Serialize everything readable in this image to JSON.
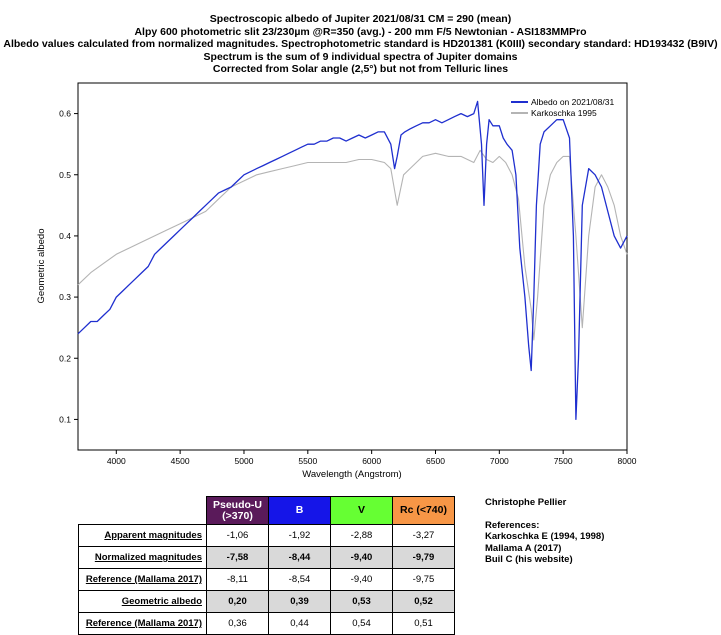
{
  "titles": [
    "Spectroscopic albedo of Jupiter 2021/08/31 CM = 290 (mean)",
    "Alpy 600 photometric slit 23/230µm @R=350 (avg.) - 200 mm F/5 Newtonian - ASI183MMPro",
    "Albedo values calculated from normalized magnitudes. Spectrophotometric standard is HD201381 (K0III) secondary standard: HD193432 (B9IV)",
    "Spectrum is the sum of 9 individual spectra of Jupiter domains",
    "Corrected from Solar angle (2,5°) but not from Telluric lines"
  ],
  "chart_data": {
    "type": "line",
    "xlabel": "Wavelength (Angstrom)",
    "ylabel": "Geometric albedo",
    "xlim": [
      3700,
      8000
    ],
    "ylim": [
      0.05,
      0.65
    ],
    "xticks": [
      4000,
      4500,
      5000,
      5500,
      6000,
      6500,
      7000,
      7500,
      8000
    ],
    "yticks": [
      0.1,
      0.2,
      0.3,
      0.4,
      0.5,
      0.6
    ],
    "legend_position": "top-right",
    "series": [
      {
        "name": "Albedo on 2021/08/31",
        "color": "#1f2fcf",
        "x": [
          3700,
          3750,
          3800,
          3850,
          3900,
          3950,
          4000,
          4050,
          4100,
          4150,
          4200,
          4250,
          4300,
          4350,
          4400,
          4450,
          4500,
          4550,
          4600,
          4650,
          4700,
          4750,
          4800,
          4850,
          4900,
          4950,
          5000,
          5050,
          5100,
          5150,
          5200,
          5250,
          5300,
          5350,
          5400,
          5450,
          5500,
          5550,
          5600,
          5650,
          5700,
          5750,
          5800,
          5850,
          5900,
          5950,
          6000,
          6050,
          6100,
          6150,
          6180,
          6200,
          6230,
          6260,
          6300,
          6350,
          6400,
          6450,
          6500,
          6550,
          6600,
          6650,
          6700,
          6750,
          6800,
          6830,
          6860,
          6880,
          6900,
          6920,
          6950,
          6980,
          7000,
          7030,
          7060,
          7100,
          7130,
          7160,
          7200,
          7230,
          7250,
          7270,
          7290,
          7320,
          7350,
          7400,
          7450,
          7500,
          7550,
          7580,
          7600,
          7620,
          7650,
          7700,
          7750,
          7800,
          7850,
          7900,
          7950,
          8000
        ],
        "y": [
          0.24,
          0.25,
          0.26,
          0.26,
          0.27,
          0.28,
          0.3,
          0.31,
          0.32,
          0.33,
          0.34,
          0.35,
          0.37,
          0.38,
          0.39,
          0.4,
          0.41,
          0.42,
          0.43,
          0.44,
          0.45,
          0.46,
          0.47,
          0.475,
          0.48,
          0.49,
          0.5,
          0.505,
          0.51,
          0.515,
          0.52,
          0.525,
          0.53,
          0.535,
          0.54,
          0.545,
          0.55,
          0.55,
          0.555,
          0.555,
          0.56,
          0.56,
          0.555,
          0.56,
          0.565,
          0.56,
          0.565,
          0.57,
          0.57,
          0.55,
          0.51,
          0.53,
          0.565,
          0.57,
          0.575,
          0.58,
          0.585,
          0.585,
          0.59,
          0.585,
          0.59,
          0.595,
          0.6,
          0.595,
          0.6,
          0.62,
          0.55,
          0.45,
          0.55,
          0.59,
          0.58,
          0.58,
          0.58,
          0.56,
          0.55,
          0.54,
          0.5,
          0.38,
          0.3,
          0.22,
          0.18,
          0.3,
          0.45,
          0.55,
          0.57,
          0.58,
          0.59,
          0.59,
          0.56,
          0.4,
          0.1,
          0.2,
          0.45,
          0.51,
          0.5,
          0.48,
          0.44,
          0.4,
          0.38,
          0.4
        ]
      },
      {
        "name": "Karkoschka 1995",
        "color": "#b4b4b4",
        "x": [
          3700,
          3800,
          3900,
          4000,
          4100,
          4200,
          4300,
          4400,
          4500,
          4600,
          4700,
          4800,
          4900,
          5000,
          5100,
          5200,
          5300,
          5400,
          5500,
          5600,
          5700,
          5800,
          5900,
          6000,
          6100,
          6150,
          6200,
          6250,
          6300,
          6400,
          6500,
          6600,
          6700,
          6800,
          6850,
          6900,
          6950,
          7000,
          7050,
          7100,
          7150,
          7200,
          7250,
          7270,
          7300,
          7350,
          7400,
          7450,
          7500,
          7550,
          7600,
          7650,
          7700,
          7750,
          7800,
          7850,
          7900,
          7950,
          8000
        ],
        "y": [
          0.32,
          0.34,
          0.355,
          0.37,
          0.38,
          0.39,
          0.4,
          0.41,
          0.42,
          0.43,
          0.44,
          0.46,
          0.48,
          0.49,
          0.5,
          0.505,
          0.51,
          0.515,
          0.52,
          0.52,
          0.52,
          0.52,
          0.525,
          0.525,
          0.52,
          0.51,
          0.45,
          0.5,
          0.51,
          0.53,
          0.535,
          0.53,
          0.53,
          0.52,
          0.54,
          0.525,
          0.52,
          0.53,
          0.52,
          0.5,
          0.46,
          0.35,
          0.28,
          0.23,
          0.3,
          0.45,
          0.5,
          0.52,
          0.53,
          0.53,
          0.4,
          0.25,
          0.4,
          0.48,
          0.5,
          0.48,
          0.45,
          0.4,
          0.37
        ]
      }
    ]
  },
  "table": {
    "headers": [
      {
        "label": "Pseudo-U (>370)",
        "bg": "#5a1a5a",
        "fg": "#ffffff"
      },
      {
        "label": "B",
        "bg": "#1515e8",
        "fg": "#ffffff"
      },
      {
        "label": "V",
        "bg": "#66ff33",
        "fg": "#000000"
      },
      {
        "label": "Rc (<740)",
        "bg": "#f79646",
        "fg": "#000000"
      }
    ],
    "rows": [
      {
        "label": "Apparent magnitudes",
        "values": [
          "-1,06",
          "-1,92",
          "-2,88",
          "-3,27"
        ],
        "hl": false
      },
      {
        "label": "Normalized magnitudes",
        "values": [
          "-7,58",
          "-8,44",
          "-9,40",
          "-9,79"
        ],
        "hl": true
      },
      {
        "label": "Reference (Mallama 2017)",
        "values": [
          "-8,11",
          "-8,54",
          "-9,40",
          "-9,75"
        ],
        "hl": false
      },
      {
        "label": "Geometric albedo",
        "values": [
          "0,20",
          "0,39",
          "0,53",
          "0,52"
        ],
        "hl": true
      },
      {
        "label": "Reference (Mallama 2017)",
        "values": [
          "0,36",
          "0,44",
          "0,54",
          "0,51"
        ],
        "hl": false
      }
    ]
  },
  "credits": {
    "author": "Christophe Pellier",
    "refs_title": "References:",
    "refs": [
      "Karkoschka E (1994, 1998)",
      "Mallama A (2017)",
      "Buil C (his website)"
    ]
  }
}
